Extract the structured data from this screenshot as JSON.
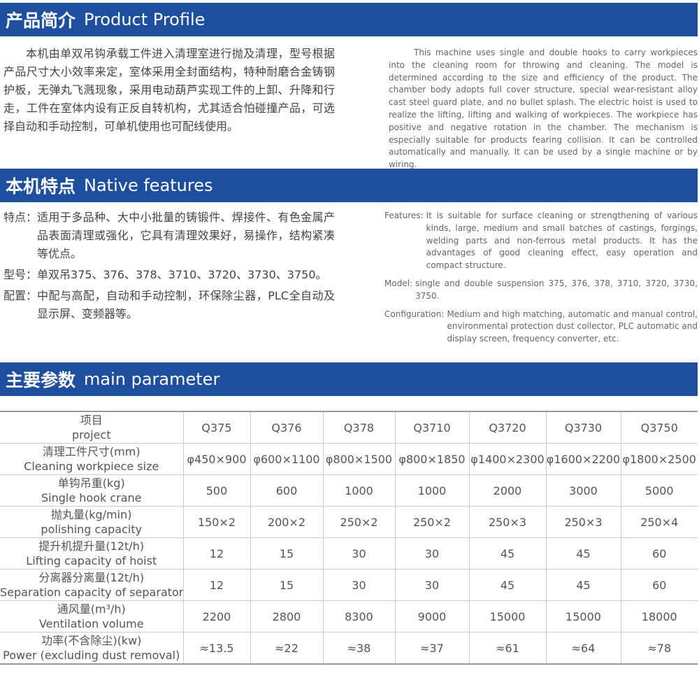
{
  "profile": {
    "title_cn": "产品简介",
    "title_en": "Product Profile",
    "text_cn": "本机由单双吊钩承载工件进入清理室进行抛及清理，型号根据产品尺寸大小效率来定，室体采用全封面结构，特种耐磨合金铸钢护板，无弹丸飞溅现象，采用电动葫芦实现工件的上卸、升降和行走，工件在室体内设有正反自转机构，尤其适合怕碰撞产品，可选择自动和手动控制，可单机使用也可配线使用。",
    "text_en": "This machine uses single and double hooks to carry workpieces into the cleaning room for throwing and cleaning. The model is determined according to the size and efficiency of the product. The chamber body adopts full cover structure, special wear-resistant alloy cast steel guard plate, and no bullet splash. The electric hoist is used to realize the lifting, lifting and walking of workpieces. The workpiece has positive and negative rotation in the chamber. The mechanism is especially suitable for products fearing collision. It can be controlled automatically and manually. It can be used by a single machine or by wiring."
  },
  "features": {
    "title_cn": "本机特点",
    "title_en": "Native features",
    "items_cn": [
      {
        "label": "特点：",
        "text": "适用于多品种、大中小批量的铸锻件、焊接件、有色金属产品表面清理或强化，它具有清理效果好，易操作，结构紧凑等优点。"
      },
      {
        "label": "型号：",
        "text": "单双吊375、376、378、3710、3720、3730、3750。"
      },
      {
        "label": "配置：",
        "text": "中配与高配，自动和手动控制，环保除尘器，PLC全自动及显示屏、变频器等。"
      }
    ],
    "items_en": [
      {
        "label": "Features:",
        "text": "It is suitable for surface cleaning or strengthening of various kinds, large, medium and small batches of castings, forgings, welding parts and non-ferrous metal products. It has the advantages of good cleaning effect, easy operation and compact structure."
      },
      {
        "label": "Model:",
        "text": "single and double suspension 375, 376, 378, 3710, 3720, 3730, 3750."
      },
      {
        "label": "Configuration:",
        "text": "Medium and high matching, automatic and manual control, environmental protection dust collector, PLC automatic and display screen, frequency converter, etc."
      }
    ]
  },
  "parameters": {
    "title_cn": "主要参数",
    "title_en": "main parameter",
    "table": {
      "rows": [
        {
          "label_cn": "项目",
          "label_en": "project",
          "values": [
            "Q375",
            "Q376",
            "Q378",
            "Q3710",
            "Q3720",
            "Q3730",
            "Q3750"
          ]
        },
        {
          "label_cn": "清理工件尺寸(mm)",
          "label_en": "Cleaning workpiece size",
          "values": [
            "φ450×900",
            "φ600×1100",
            "φ800×1500",
            "φ800×1850",
            "φ1400×2300",
            "φ1600×2200",
            "φ1800×2500"
          ]
        },
        {
          "label_cn": "单钩吊重(kg)",
          "label_en": "Single hook crane",
          "values": [
            "500",
            "600",
            "1000",
            "1000",
            "2000",
            "3000",
            "5000"
          ]
        },
        {
          "label_cn": "抛丸量(kg/min)",
          "label_en": "polishing capacity",
          "values": [
            "150×2",
            "200×2",
            "250×2",
            "250×2",
            "250×3",
            "250×3",
            "250×4"
          ]
        },
        {
          "label_cn": "提升机提升量(12t/h)",
          "label_en": "Lifting capacity of hoist",
          "values": [
            "12",
            "15",
            "30",
            "30",
            "45",
            "45",
            "60"
          ]
        },
        {
          "label_cn": "分离器分离量(12t/h)",
          "label_en": "Separation capacity of separator",
          "values": [
            "12",
            "15",
            "30",
            "30",
            "45",
            "45",
            "60"
          ]
        },
        {
          "label_cn": "通风量(m³/h)",
          "label_en": "Ventilation volume",
          "values": [
            "2200",
            "2800",
            "8300",
            "9000",
            "15000",
            "15000",
            "18000"
          ]
        },
        {
          "label_cn": "功率(不含除尘)(kw)",
          "label_en": "Power (excluding dust removal)",
          "values": [
            "≈13.5",
            "≈22",
            "≈38",
            "≈37",
            "≈61",
            "≈64",
            "≈78"
          ]
        }
      ]
    }
  }
}
